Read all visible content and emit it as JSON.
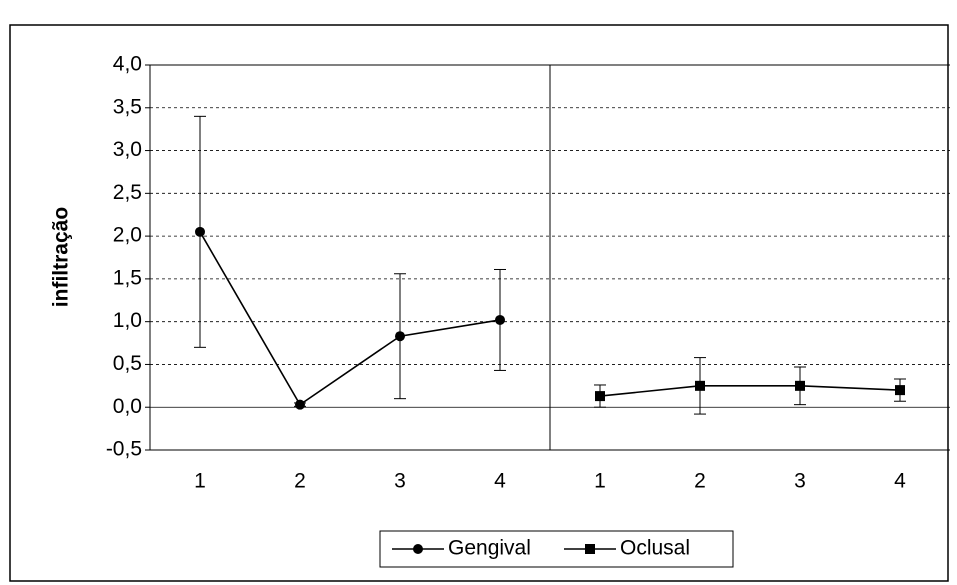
{
  "chart_data": {
    "type": "line",
    "y_label": "infiltração",
    "categories": [
      "1",
      "2",
      "3",
      "4",
      "1",
      "2",
      "3",
      "4"
    ],
    "series": [
      {
        "name": "Gengival",
        "color": "#000000",
        "marker": "circle",
        "values": [
          2.05,
          0.03,
          0.83,
          1.02,
          null,
          null,
          null,
          null
        ],
        "errors": [
          1.35,
          0.02,
          0.73,
          0.59,
          null,
          null,
          null,
          null
        ]
      },
      {
        "name": "Oclusal",
        "color": "#000000",
        "marker": "square",
        "values": [
          null,
          null,
          null,
          null,
          0.13,
          0.25,
          0.25,
          0.2
        ],
        "errors": [
          null,
          null,
          null,
          null,
          0.13,
          0.33,
          0.22,
          0.13
        ]
      }
    ],
    "ylim": [
      -0.5,
      4
    ],
    "yticks": [
      {
        "value": -0.5,
        "label": "-0,5"
      },
      {
        "value": 0,
        "label": "0,0"
      },
      {
        "value": 0.5,
        "label": "0,5"
      },
      {
        "value": 1,
        "label": "1,0"
      },
      {
        "value": 1.5,
        "label": "1,5"
      },
      {
        "value": 2,
        "label": "2,0"
      },
      {
        "value": 2.5,
        "label": "2,5"
      },
      {
        "value": 3,
        "label": "3,0"
      },
      {
        "value": 3.5,
        "label": "3,5"
      },
      {
        "value": 4,
        "label": "4,0"
      }
    ],
    "grid": true,
    "legend": "bottom"
  }
}
